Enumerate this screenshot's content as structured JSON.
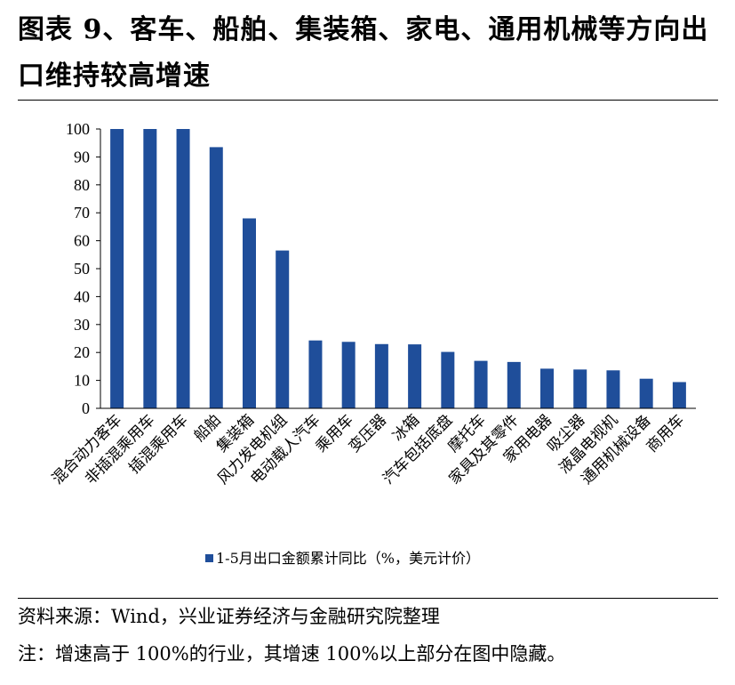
{
  "header": {
    "title": "图表 9、客车、船舶、集装箱、家电、通用机械等方向出口维持较高增速"
  },
  "chart_data": {
    "type": "bar",
    "categories": [
      "混合动力客车",
      "非插混乘用车",
      "插混乘用车",
      "船舶",
      "集装箱",
      "风力发电机组",
      "电动载人汽车",
      "乘用车",
      "变压器",
      "冰箱",
      "汽车包括底盘",
      "摩托车",
      "家具及其零件",
      "家用电器",
      "吸尘器",
      "液晶电视机",
      "通用机械设备",
      "商用车"
    ],
    "series": [
      {
        "name": "1-5月出口金额累计同比（%，美元计价）",
        "values": [
          100,
          100,
          100,
          93.5,
          68,
          56.5,
          24.3,
          23.8,
          23,
          22.9,
          20.2,
          17,
          16.6,
          14.2,
          13.9,
          13.6,
          10.6,
          9.4
        ]
      }
    ],
    "ylim": [
      0,
      100
    ],
    "yticks": [
      0,
      10,
      20,
      30,
      40,
      50,
      60,
      70,
      80,
      90,
      100
    ],
    "legend_position": "bottom",
    "bar_color": "#1F4E9A",
    "grid": false
  },
  "footer": {
    "source": "资料来源：Wind，兴业证券经济与金融研究院整理",
    "note": "注：增速高于 100%的行业，其增速 100%以上部分在图中隐藏。"
  }
}
